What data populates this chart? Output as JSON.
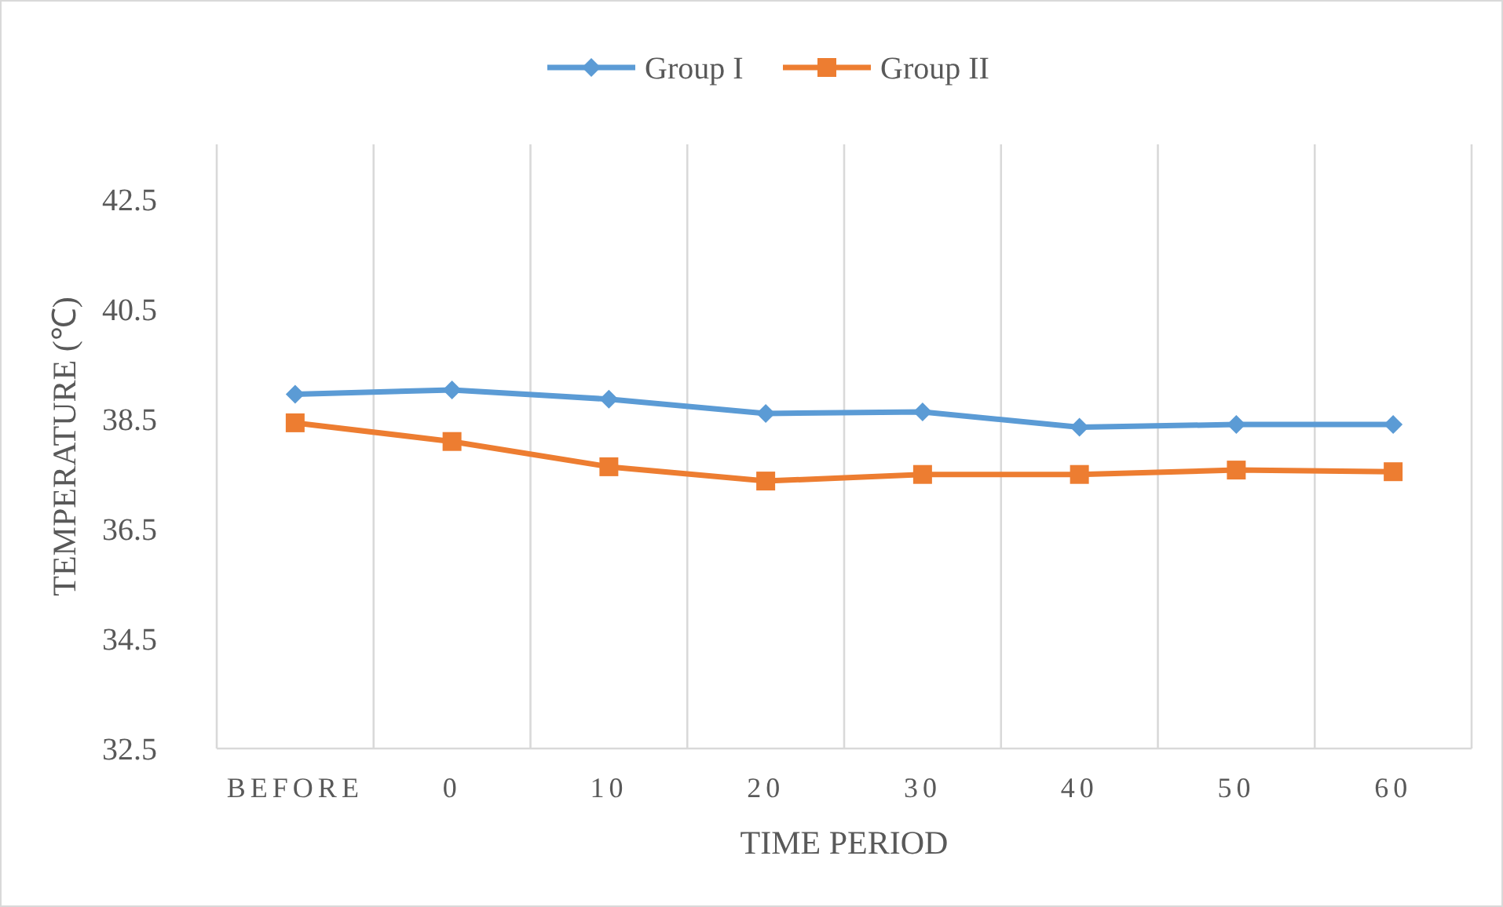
{
  "chart_data": {
    "type": "line",
    "xlabel": "TIME PERIOD",
    "ylabel": "TEMPERATURE (℃)",
    "categories": [
      "BEFORE",
      "0",
      "10",
      "20",
      "30",
      "40",
      "50",
      "60"
    ],
    "series": [
      {
        "name": "Group I",
        "color": "#5b9bd5",
        "marker": "diamond",
        "values": [
          38.95,
          39.03,
          38.86,
          38.6,
          38.63,
          38.35,
          38.4,
          38.4
        ]
      },
      {
        "name": "Group II",
        "color": "#ed7d31",
        "marker": "square",
        "values": [
          38.43,
          38.09,
          37.63,
          37.37,
          37.49,
          37.49,
          37.57,
          37.54
        ]
      }
    ],
    "ylim": [
      32.5,
      43.5
    ],
    "yticks": [
      32.5,
      34.5,
      36.5,
      38.5,
      40.5,
      42.5
    ],
    "grid": "x",
    "legend": "top"
  }
}
